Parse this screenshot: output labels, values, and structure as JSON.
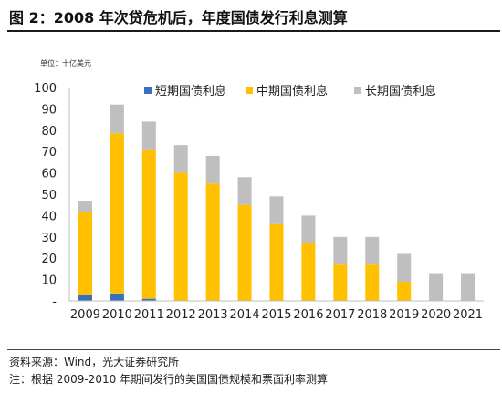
{
  "figure": {
    "title": "图 2：2008 年次贷危机后，年度国债发行利息测算",
    "source": "资料来源：Wind，光大证券研究所",
    "note": "注：根据 2009-2010 年期间发行的美国国债规模和票面利率测算"
  },
  "colors": {
    "short": "#3a6fbf",
    "mid": "#ffc000",
    "long": "#bfbfbf",
    "axis": "#bfbfbf"
  },
  "chart_data": {
    "type": "bar",
    "stacked": true,
    "unit_label": "单位：十亿美元",
    "categories": [
      "2009",
      "2010",
      "2011",
      "2012",
      "2013",
      "2014",
      "2015",
      "2016",
      "2017",
      "2018",
      "2019",
      "2020",
      "2021"
    ],
    "series": [
      {
        "name": "短期国债利息",
        "color_key": "short",
        "values": [
          3,
          3.5,
          1,
          0,
          0,
          0,
          0,
          0,
          0,
          0,
          0,
          0,
          0
        ]
      },
      {
        "name": "中期国债利息",
        "color_key": "mid",
        "values": [
          38.5,
          75,
          70,
          60,
          55,
          45,
          36,
          27,
          17,
          17,
          9,
          0,
          0
        ]
      },
      {
        "name": "长期国债利息",
        "color_key": "long",
        "values": [
          5.5,
          13.5,
          13,
          13,
          13,
          13,
          13,
          13,
          13,
          13,
          13,
          13,
          13
        ]
      }
    ],
    "ylim": [
      0,
      100
    ],
    "yticks": [
      0,
      10,
      20,
      30,
      40,
      50,
      60,
      70,
      80,
      90,
      100
    ],
    "ytick_labels": [
      "-",
      "10",
      "20",
      "30",
      "40",
      "50",
      "60",
      "70",
      "80",
      "90",
      "100"
    ],
    "legend_position": "top",
    "grid": false
  }
}
